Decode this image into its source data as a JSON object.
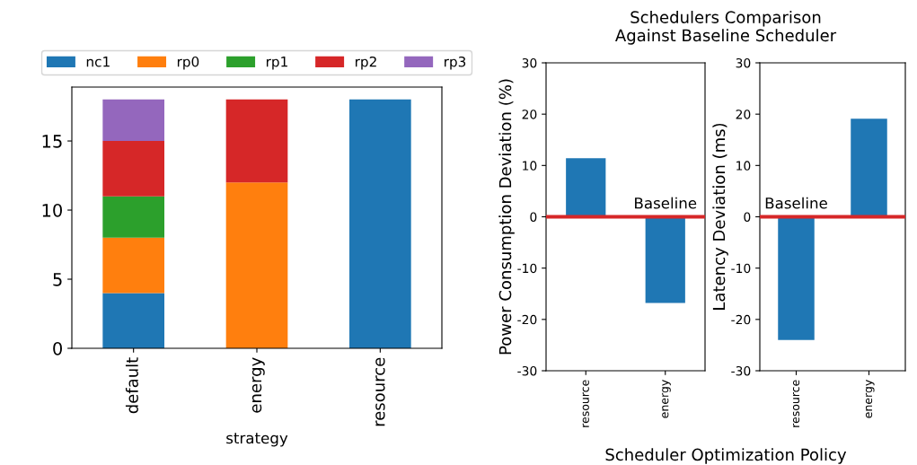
{
  "chart_data": [
    {
      "type": "bar",
      "stacked": true,
      "xlabel": "strategy",
      "categories": [
        "default",
        "energy",
        "resource"
      ],
      "ylim": [
        0,
        18.9
      ],
      "yticks": [
        0,
        5,
        10,
        15
      ],
      "legend": "top",
      "grid": false,
      "series": [
        {
          "name": "nc1",
          "color": "#1f77b4",
          "values": [
            4,
            0,
            18
          ]
        },
        {
          "name": "rp0",
          "color": "#ff7f0e",
          "values": [
            4,
            12,
            0
          ]
        },
        {
          "name": "rp1",
          "color": "#2ca02c",
          "values": [
            3,
            0,
            0
          ]
        },
        {
          "name": "rp2",
          "color": "#d62728",
          "values": [
            4,
            6,
            0
          ]
        },
        {
          "name": "rp3",
          "color": "#9467bd",
          "values": [
            3,
            0,
            0
          ]
        }
      ]
    },
    {
      "type": "bar",
      "title": "Schedulers Comparison\nAgainst Baseline Scheduler",
      "xlabel": "Scheduler Optimization Policy",
      "ylabel": "Power Consumption Deviation (%)",
      "categories": [
        "resource",
        "energy"
      ],
      "values": [
        11.4,
        -16.8
      ],
      "color": "#1f77b4",
      "ylim": [
        -30,
        30
      ],
      "yticks": [
        -30,
        -20,
        -10,
        0,
        10,
        20,
        30
      ],
      "grid": false,
      "ref_lines": [
        {
          "axis": "y",
          "value": 0,
          "label": "Baseline",
          "color": "#d62728"
        }
      ]
    },
    {
      "type": "bar",
      "ylabel": "Latency Deviation (ms)",
      "categories": [
        "resource",
        "energy"
      ],
      "values": [
        -24,
        19.1
      ],
      "color": "#1f77b4",
      "ylim": [
        -30,
        30
      ],
      "yticks": [
        -30,
        -20,
        -10,
        0,
        10,
        20,
        30
      ],
      "grid": false,
      "ref_lines": [
        {
          "axis": "y",
          "value": 0,
          "label": "Baseline",
          "color": "#d62728"
        }
      ]
    }
  ]
}
